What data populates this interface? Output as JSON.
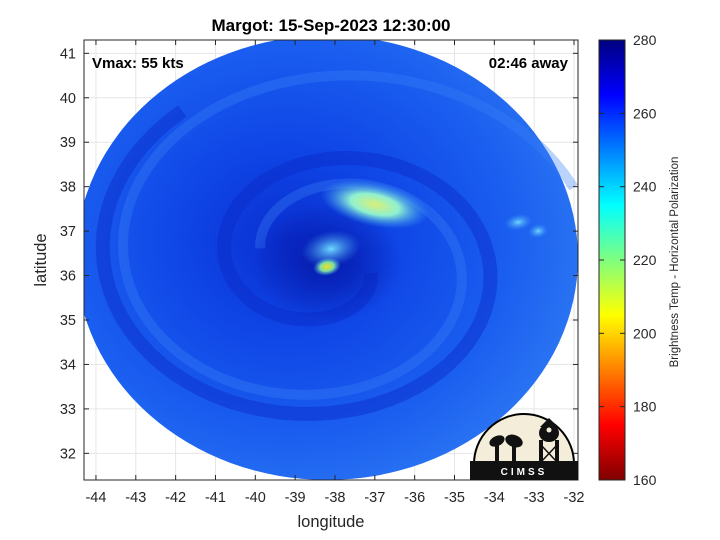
{
  "chart_data": {
    "type": "heatmap",
    "title": "Margot: 15-Sep-2023 12:30:00",
    "xlabel": "longitude",
    "ylabel": "latitude",
    "xlim": [
      -44.3,
      -31.9
    ],
    "ylim": [
      31.4,
      41.3
    ],
    "xticks": [
      -44,
      -43,
      -42,
      -41,
      -40,
      -39,
      -38,
      -37,
      -36,
      -35,
      -34,
      -33,
      -32
    ],
    "yticks": [
      32,
      33,
      34,
      35,
      36,
      37,
      38,
      39,
      40,
      41
    ],
    "grid": true,
    "annotations": {
      "vmax": "Vmax: 55 kts",
      "time_offset": "02:46 away"
    },
    "storm_center": {
      "lon": -38.2,
      "lat": 36.3
    },
    "swath": {
      "center_lon": -38.2,
      "center_lat": 36.4,
      "radius_lon": 6.3,
      "radius_lat": 5.0
    },
    "warm_features": [
      {
        "lon": -37.0,
        "lat": 37.6,
        "value": 222
      },
      {
        "lon": -38.1,
        "lat": 36.6,
        "value": 232
      },
      {
        "lon": -38.2,
        "lat": 36.2,
        "value": 208
      },
      {
        "lon": -33.4,
        "lat": 37.2,
        "value": 238
      },
      {
        "lon": -32.9,
        "lat": 37.0,
        "value": 236
      }
    ],
    "colorbar": {
      "label": "Brightness Temp - Horizontal Polarization",
      "min": 160,
      "max": 280,
      "ticks": [
        280,
        260,
        240,
        220,
        200,
        180,
        160
      ]
    }
  },
  "logo": {
    "text": "CIMSS"
  }
}
